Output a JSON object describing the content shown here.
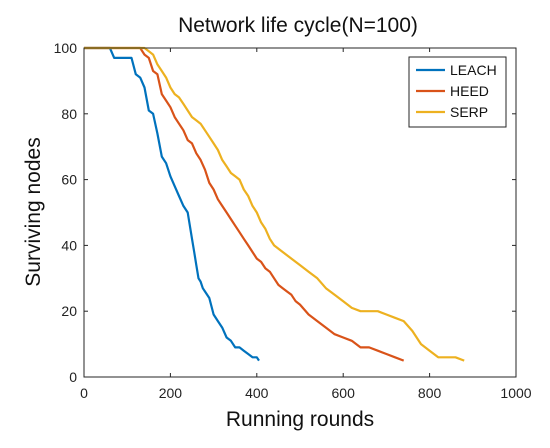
{
  "chart_data": {
    "type": "line",
    "title": "Network life cycle(N=100)",
    "xlabel": "Running rounds",
    "ylabel": "Surviving nodes",
    "xlim": [
      0,
      1000
    ],
    "ylim": [
      0,
      100
    ],
    "xticks": [
      "0",
      "200",
      "400",
      "600",
      "800",
      "1000"
    ],
    "yticks": [
      "0",
      "20",
      "40",
      "60",
      "80",
      "100"
    ],
    "grid": false,
    "legend_position": "top-right",
    "series": [
      {
        "name": "LEACH",
        "color": "#0072BD",
        "x": [
          0,
          60,
          70,
          110,
          120,
          130,
          140,
          150,
          160,
          170,
          180,
          190,
          200,
          210,
          220,
          230,
          240,
          250,
          255,
          260,
          265,
          270,
          275,
          280,
          290,
          300,
          310,
          320,
          330,
          340,
          350,
          360,
          370,
          380,
          390,
          400,
          405
        ],
        "y": [
          100,
          100,
          97,
          97,
          92,
          91,
          88,
          81,
          80,
          74,
          67,
          65,
          61,
          58,
          55,
          52,
          50,
          42,
          38,
          34,
          30,
          29,
          27,
          26,
          24,
          19,
          17,
          15,
          12,
          11,
          9,
          9,
          8,
          7,
          6,
          6,
          5
        ]
      },
      {
        "name": "HEED",
        "color": "#D95319",
        "x": [
          0,
          130,
          140,
          150,
          160,
          170,
          180,
          190,
          200,
          210,
          220,
          230,
          240,
          250,
          260,
          270,
          280,
          290,
          300,
          310,
          320,
          330,
          340,
          350,
          360,
          370,
          380,
          390,
          400,
          410,
          420,
          430,
          440,
          450,
          460,
          470,
          480,
          490,
          500,
          520,
          540,
          560,
          580,
          600,
          620,
          640,
          660,
          680,
          700,
          720,
          740
        ],
        "y": [
          100,
          100,
          98,
          97,
          93,
          92,
          86,
          84,
          82,
          79,
          77,
          75,
          72,
          71,
          68,
          66,
          63,
          59,
          57,
          54,
          52,
          50,
          48,
          46,
          44,
          42,
          40,
          38,
          36,
          35,
          33,
          32,
          30,
          28,
          27,
          26,
          25,
          23,
          22,
          19,
          17,
          15,
          13,
          12,
          11,
          9,
          9,
          8,
          7,
          6,
          5
        ]
      },
      {
        "name": "SERP",
        "color": "#EDB120",
        "x": [
          0,
          140,
          150,
          160,
          170,
          180,
          190,
          200,
          210,
          220,
          230,
          240,
          250,
          260,
          270,
          280,
          290,
          300,
          310,
          320,
          330,
          340,
          350,
          360,
          370,
          380,
          390,
          400,
          410,
          420,
          430,
          440,
          460,
          480,
          500,
          520,
          540,
          560,
          580,
          600,
          620,
          640,
          660,
          680,
          700,
          720,
          740,
          760,
          780,
          800,
          820,
          840,
          860,
          880
        ],
        "y": [
          100,
          100,
          99,
          98,
          95,
          93,
          91,
          88,
          86,
          85,
          83,
          81,
          79,
          78,
          77,
          75,
          73,
          71,
          69,
          66,
          64,
          62,
          61,
          60,
          57,
          55,
          52,
          50,
          47,
          45,
          42,
          40,
          38,
          36,
          34,
          32,
          30,
          27,
          25,
          23,
          21,
          20,
          20,
          20,
          19,
          18,
          17,
          14,
          10,
          8,
          6,
          6,
          6,
          5
        ]
      }
    ]
  }
}
